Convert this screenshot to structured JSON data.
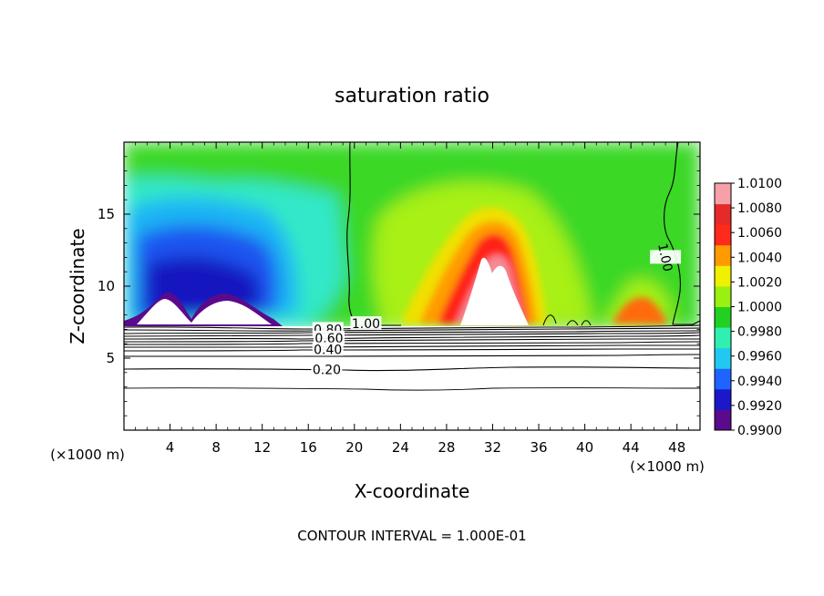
{
  "chart_data": {
    "type": "heatmap",
    "title": "saturation ratio",
    "xlabel": "X-coordinate",
    "ylabel": "Z-coordinate",
    "x_unit_left": "(×1000 m)",
    "x_unit_right": "(×1000 m)",
    "xlim": [
      0,
      50
    ],
    "ylim": [
      0,
      20
    ],
    "x_ticks": [
      4,
      8,
      12,
      16,
      20,
      24,
      28,
      32,
      36,
      40,
      44,
      48
    ],
    "y_ticks": [
      5,
      10,
      15
    ],
    "colorbar": {
      "levels": [
        0.99,
        0.992,
        0.994,
        0.996,
        0.998,
        1.0,
        1.002,
        1.004,
        1.006,
        1.008,
        1.01
      ],
      "labels": [
        "0.9900",
        "0.9920",
        "0.9940",
        "0.9960",
        "0.9980",
        "1.0000",
        "1.0020",
        "1.0040",
        "1.0060",
        "1.0080",
        "1.0100"
      ],
      "colors": [
        "#5a0a8c",
        "#1a18c8",
        "#1f64ff",
        "#22c8f0",
        "#2ff0b0",
        "#22d022",
        "#9af010",
        "#f0f000",
        "#ff9a00",
        "#ff2a1a",
        "#e62a2a",
        "#f7a0a8"
      ]
    },
    "contour_labels": [
      {
        "text": "1.00",
        "x": 21.0,
        "z": 7.4
      },
      {
        "text": "1.00",
        "x": 47.0,
        "z": 12.0
      },
      {
        "text": "0.80",
        "x": 17.7,
        "z": 7.0
      },
      {
        "text": "0.60",
        "x": 17.8,
        "z": 6.4
      },
      {
        "text": "0.40",
        "x": 17.7,
        "z": 5.6
      },
      {
        "text": "0.20",
        "x": 17.6,
        "z": 4.2
      }
    ],
    "footnote": "CONTOUR INTERVAL = 1.000E-01"
  }
}
